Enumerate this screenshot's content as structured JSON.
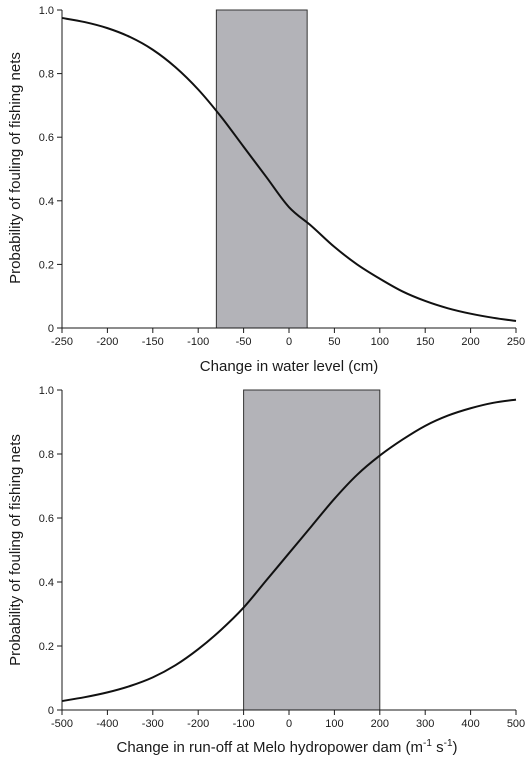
{
  "colors": {
    "band_fill": "#b3b3b8",
    "curve": "#111111",
    "axis": "#1a1a1a"
  },
  "chart_data": [
    {
      "type": "line",
      "xlabel": "Change in water level (cm)",
      "ylabel": "Probability of fouling of fishing nets",
      "xlim": [
        -250,
        250
      ],
      "ylim": [
        0,
        1
      ],
      "xticks": [
        "-250",
        "-200",
        "-150",
        "-100",
        "-50",
        "0",
        "50",
        "100",
        "150",
        "200",
        "250"
      ],
      "yticks": [
        "0",
        "0.2",
        "0.4",
        "0.6",
        "0.8",
        "1.0"
      ],
      "shaded_band": {
        "x_start": -80,
        "x_end": 20
      },
      "series": [
        {
          "x": [
            -250,
            -225,
            -200,
            -175,
            -150,
            -125,
            -100,
            -75,
            -50,
            -25,
            0,
            25,
            50,
            75,
            100,
            125,
            150,
            175,
            200,
            225,
            250
          ],
          "y": [
            0.975,
            0.962,
            0.943,
            0.915,
            0.875,
            0.82,
            0.75,
            0.665,
            0.57,
            0.475,
            0.38,
            0.32,
            0.255,
            0.2,
            0.155,
            0.115,
            0.085,
            0.062,
            0.045,
            0.032,
            0.022
          ]
        }
      ]
    },
    {
      "type": "line",
      "xlabel_main": "Change in run-off at Melo hydropower dam (m",
      "xlabel_sup1": "-1",
      "xlabel_mid": " s",
      "xlabel_sup2": "-1",
      "xlabel_end": ")",
      "ylabel": "Probability of fouling of fishing nets",
      "xlim": [
        -500,
        500
      ],
      "ylim": [
        0,
        1
      ],
      "xticks": [
        "-500",
        "-400",
        "-300",
        "-200",
        "-100",
        "0",
        "100",
        "200",
        "300",
        "400",
        "500"
      ],
      "yticks": [
        "0",
        "0.2",
        "0.4",
        "0.6",
        "0.8",
        "1.0"
      ],
      "shaded_band": {
        "x_start": -100,
        "x_end": 200
      },
      "series": [
        {
          "x": [
            -500,
            -450,
            -400,
            -350,
            -300,
            -250,
            -200,
            -150,
            -100,
            -50,
            0,
            50,
            100,
            150,
            200,
            250,
            300,
            350,
            400,
            450,
            500
          ],
          "y": [
            0.028,
            0.04,
            0.055,
            0.075,
            0.102,
            0.14,
            0.19,
            0.25,
            0.32,
            0.405,
            0.49,
            0.575,
            0.66,
            0.735,
            0.795,
            0.845,
            0.888,
            0.92,
            0.943,
            0.96,
            0.97
          ]
        }
      ]
    }
  ]
}
